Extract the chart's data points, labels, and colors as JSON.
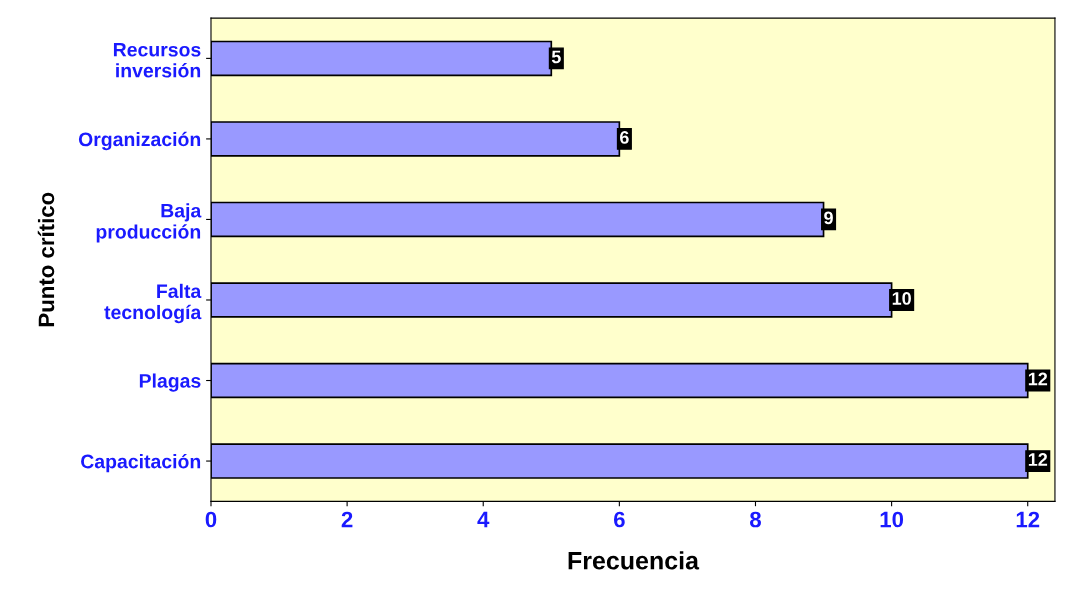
{
  "chart_data": {
    "type": "bar",
    "orientation": "horizontal",
    "xlabel": "Frecuencia",
    "ylabel": "Punto crítico",
    "categories": [
      "Recursos\ninversión",
      "Organización",
      "Baja\nproducción",
      "Falta\ntecnología",
      "Plagas",
      "Capacitación"
    ],
    "values": [
      5,
      6,
      9,
      10,
      12,
      12
    ],
    "color": "#9999ff",
    "xlim": [
      0,
      12.4
    ],
    "xticks": [
      0,
      2,
      4,
      6,
      8,
      10,
      12
    ],
    "grid": false,
    "data_labels": true
  }
}
